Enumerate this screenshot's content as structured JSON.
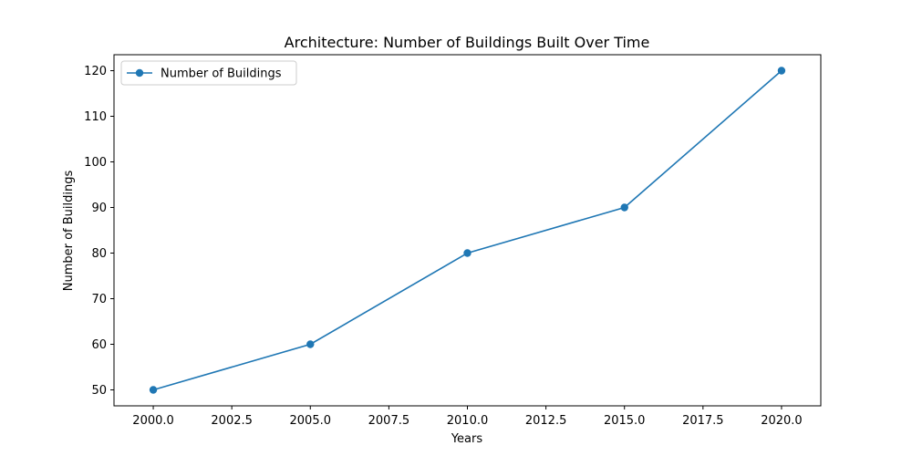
{
  "chart_data": {
    "type": "line",
    "title": "Architecture: Number of Buildings Built Over Time",
    "xlabel": "Years",
    "ylabel": "Number of Buildings",
    "xlim": [
      1998.75,
      2021.25
    ],
    "ylim": [
      46.5,
      123.5
    ],
    "x_ticks": [
      2000.0,
      2002.5,
      2005.0,
      2007.5,
      2010.0,
      2012.5,
      2015.0,
      2017.5,
      2020.0
    ],
    "x_tick_labels": [
      "2000.0",
      "2002.5",
      "2005.0",
      "2007.5",
      "2010.0",
      "2012.5",
      "2015.0",
      "2017.5",
      "2020.0"
    ],
    "y_ticks": [
      50,
      60,
      70,
      80,
      90,
      100,
      110,
      120
    ],
    "y_tick_labels": [
      "50",
      "60",
      "70",
      "80",
      "90",
      "100",
      "110",
      "120"
    ],
    "grid": false,
    "legend_position": "top-left",
    "series": [
      {
        "name": "Number of Buildings",
        "color": "#1f77b4",
        "marker": "circle",
        "x": [
          2000,
          2005,
          2010,
          2015,
          2020
        ],
        "y": [
          50,
          60,
          80,
          90,
          120
        ]
      }
    ]
  }
}
